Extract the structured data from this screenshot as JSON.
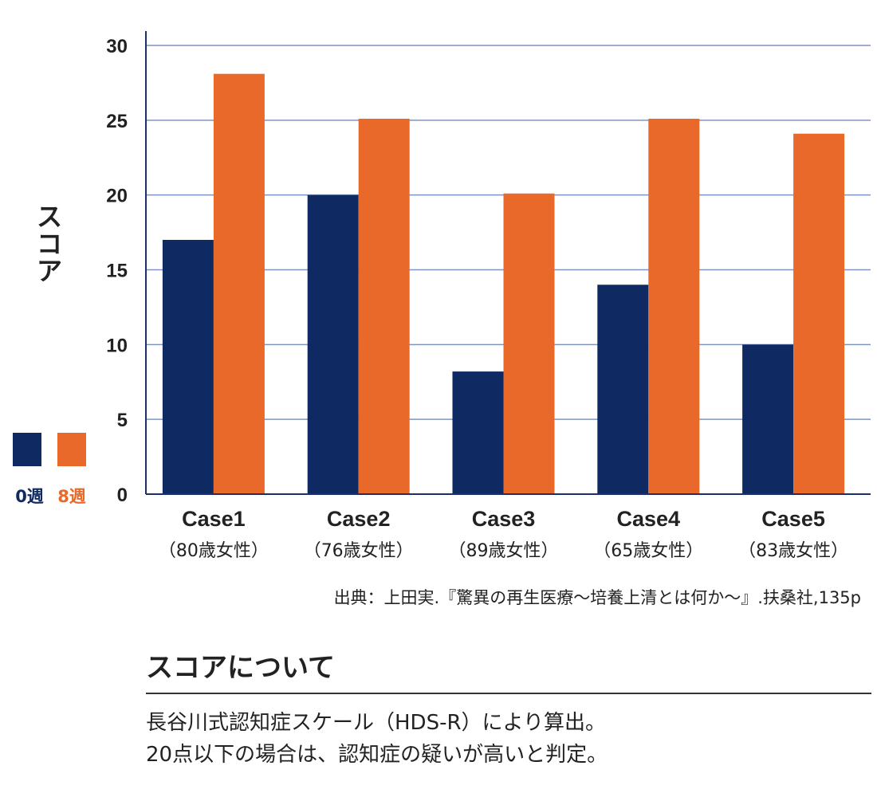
{
  "chart_data": {
    "type": "bar",
    "ylabel": "スコア",
    "ylim": [
      0,
      30
    ],
    "yticks": [
      0,
      5,
      10,
      15,
      20,
      25,
      30
    ],
    "grid": true,
    "categories": [
      "Case1",
      "Case2",
      "Case3",
      "Case4",
      "Case5"
    ],
    "category_sublabels": [
      "（80歳女性）",
      "（76歳女性）",
      "（89歳女性）",
      "（65歳女性）",
      "（83歳女性）"
    ],
    "series": [
      {
        "name": "0週",
        "color": "#0f2a63",
        "values": [
          17,
          20,
          8.2,
          14,
          10
        ]
      },
      {
        "name": "8週",
        "color": "#e8692a",
        "values": [
          28.1,
          25.1,
          20.1,
          25.1,
          24.1
        ]
      }
    ],
    "legend_placement": "left"
  },
  "source_text": "出典：上田実.『驚異の再生医療〜培養上清とは何か〜』.扶桑社,135p",
  "score_section": {
    "heading": "スコアについて",
    "line1": "長谷川式認知症スケール（HDS-R）により算出。",
    "line2": "20点以下の場合は、認知症の疑いが高いと判定。"
  }
}
